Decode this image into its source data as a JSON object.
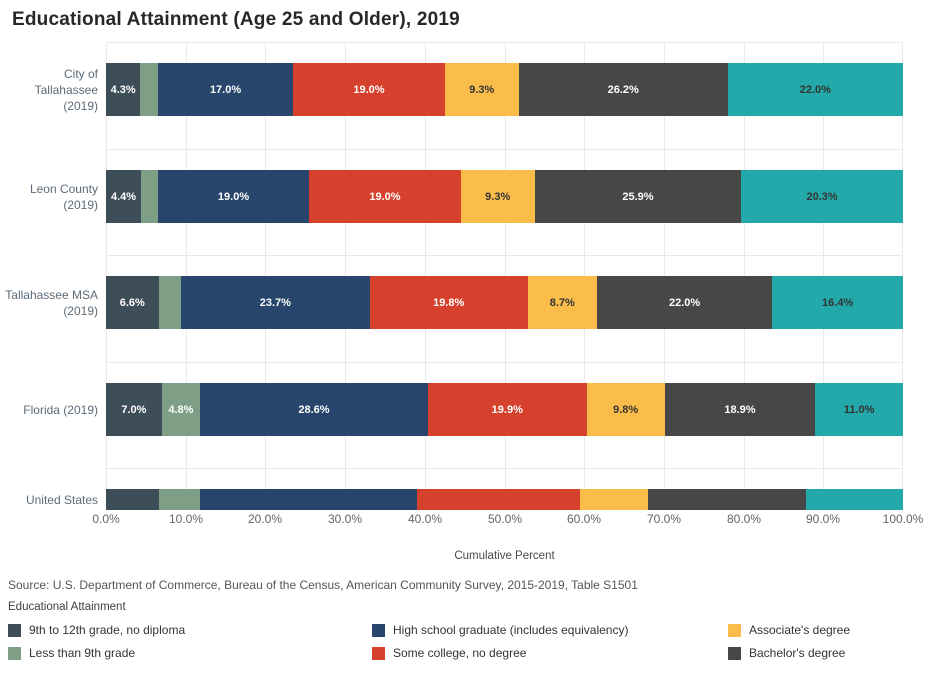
{
  "title": "Educational Attainment (Age 25 and Older), 2019",
  "source_note": "Source: U.S. Department of Commerce, Bureau of the Census, American Community Survey, 2015-2019, Table S1501",
  "legend": {
    "title": "Educational Attainment",
    "items": [
      {
        "label": "9th to 12th grade, no diploma",
        "color": "#3e4e59"
      },
      {
        "label": "Less than 9th grade",
        "color": "#7f9e86"
      },
      {
        "label": "High school graduate (includes equivalency)",
        "color": "#28456b"
      },
      {
        "label": "Some college, no degree",
        "color": "#d6412e"
      },
      {
        "label": "Associate's degree",
        "color": "#fabd4a"
      },
      {
        "label": "Bachelor's degree",
        "color": "#474747"
      }
    ]
  },
  "chart_data": {
    "type": "bar",
    "orientation": "horizontal-stacked",
    "title": "Educational Attainment (Age 25 and Older), 2019",
    "xlabel": "Cumulative Percent",
    "xlim": [
      0,
      100
    ],
    "x_tick_labels": [
      "0.0%",
      "10.0%",
      "20.0%",
      "30.0%",
      "40.0%",
      "50.0%",
      "60.0%",
      "70.0%",
      "80.0%",
      "90.0%",
      "100.0%"
    ],
    "grid": true,
    "data_label_min_value": 4.0,
    "rows": [
      {
        "label_lines": [
          "City of Tallahassee",
          "(2019)"
        ],
        "labels_shown": true
      },
      {
        "label_lines": [
          "Leon County",
          "(2019)"
        ],
        "labels_shown": true
      },
      {
        "label_lines": [
          "Tallahassee MSA",
          "(2019)"
        ],
        "labels_shown": true
      },
      {
        "label_lines": [
          "Florida (2019)"
        ],
        "labels_shown": true
      },
      {
        "label_lines": [
          "United States"
        ],
        "labels_shown": false
      }
    ],
    "series": [
      {
        "name": "9th to 12th grade, no diploma",
        "color": "#3e4e59",
        "text_color": "#ffffff",
        "values": [
          4.3,
          4.4,
          6.6,
          7.0,
          6.7
        ]
      },
      {
        "name": "Less than 9th grade",
        "color": "#7f9e86",
        "text_color": "#ffffff",
        "values": [
          2.2,
          2.1,
          2.8,
          4.8,
          5.1
        ]
      },
      {
        "name": "High school graduate (includes equivalency)",
        "color": "#28456b",
        "text_color": "#ffffff",
        "values": [
          17.0,
          19.0,
          23.7,
          28.6,
          27.2
        ]
      },
      {
        "name": "Some college, no degree",
        "color": "#d6412e",
        "text_color": "#ffffff",
        "values": [
          19.0,
          19.0,
          19.8,
          19.9,
          20.5
        ]
      },
      {
        "name": "Associate's degree",
        "color": "#fabd4a",
        "text_color": "#333333",
        "values": [
          9.3,
          9.3,
          8.7,
          9.8,
          8.5
        ]
      },
      {
        "name": "Bachelor's degree",
        "color": "#474747",
        "text_color": "#ffffff",
        "values": [
          26.2,
          25.9,
          22.0,
          18.9,
          19.8
        ]
      },
      {
        "name": "",
        "color": "#23a9a9",
        "text_color": "#333333",
        "values": [
          22.0,
          20.3,
          16.4,
          11.0,
          12.2
        ]
      }
    ]
  }
}
